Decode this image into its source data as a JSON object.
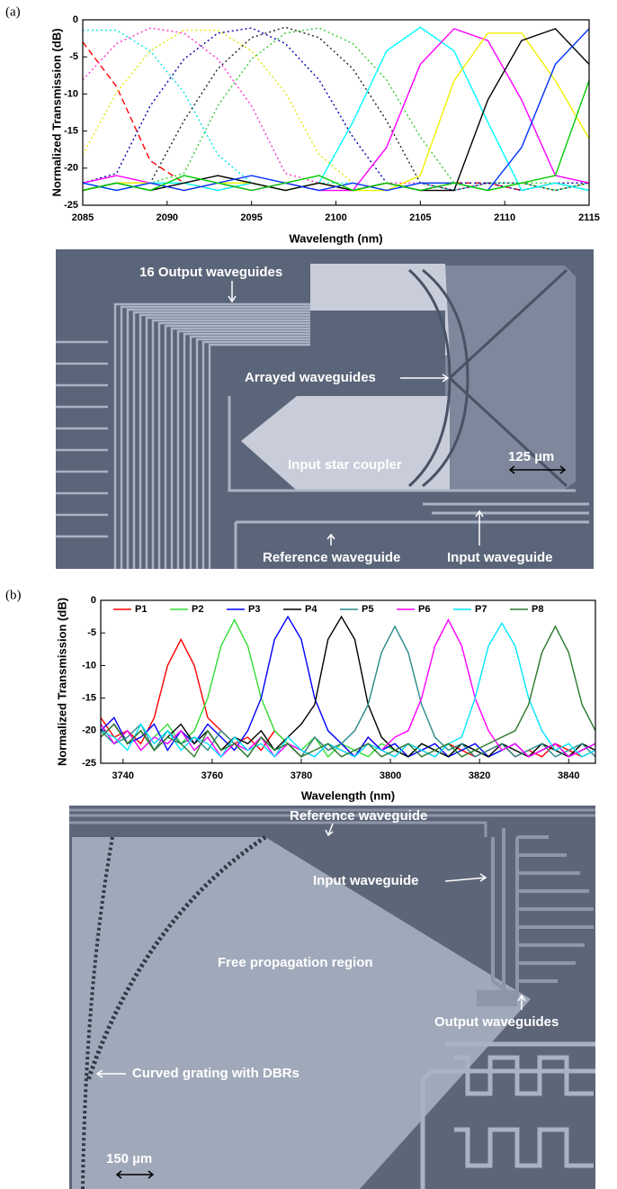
{
  "panel_labels": [
    "(a)",
    "(b)"
  ],
  "chart_data": [
    {
      "type": "line",
      "x_label": "Wavelength (nm)",
      "y_label": "Normalized Transmission (dB)",
      "xlim": [
        2085,
        2115
      ],
      "ylim": [
        -25,
        0
      ],
      "xticks": [
        2085,
        2090,
        2095,
        2100,
        2105,
        2110,
        2115
      ],
      "yticks": [
        0,
        -5,
        -10,
        -15,
        -20,
        -25
      ],
      "x": [
        2085,
        2087,
        2089,
        2091,
        2093,
        2095,
        2097,
        2099,
        2101,
        2103,
        2105,
        2107,
        2109,
        2111,
        2113,
        2115
      ],
      "series": [
        {
          "color": "#ff0000",
          "line_style": "dashed",
          "values": [
            -3,
            -9,
            -19,
            -22,
            -23,
            -22,
            -23,
            -22,
            -23,
            -22,
            -23,
            -22,
            -22,
            -23,
            -22,
            -23
          ]
        },
        {
          "color": "#00e5e5",
          "line_style": "dotted",
          "values": [
            -1.4,
            -1.4,
            -4.2,
            -9.8,
            -18.2,
            -22,
            -23,
            -22,
            -22,
            -23,
            -22,
            -23,
            -22,
            -22,
            -23,
            -22
          ]
        },
        {
          "color": "#ff33cc",
          "line_style": "dotted",
          "values": [
            -8.1,
            -3.2,
            -1.1,
            -1.8,
            -5.3,
            -11.6,
            -20.7,
            -22,
            -23,
            -22,
            -22,
            -23,
            -22,
            -23,
            -22,
            -22
          ]
        },
        {
          "color": "#e5e500",
          "line_style": "dotted",
          "values": [
            -18.2,
            -9.8,
            -4.2,
            -1.4,
            -1.4,
            -4.2,
            -9.8,
            -18.2,
            -22,
            -23,
            -22,
            -22,
            -23,
            -22,
            -23,
            -22
          ]
        },
        {
          "color": "#0000aa",
          "line_style": "dotted",
          "values": [
            -22,
            -20.7,
            -11.6,
            -5.3,
            -1.8,
            -1.1,
            -3.2,
            -8.1,
            -15.8,
            -22,
            -23,
            -22,
            -22,
            -23,
            -22,
            -22
          ]
        },
        {
          "color": "#222222",
          "line_style": "dotted",
          "values": [
            -23,
            -22,
            -22,
            -13.6,
            -6.6,
            -2.4,
            -1,
            -2.4,
            -6.6,
            -13.6,
            -22,
            -23,
            -22,
            -22,
            -23,
            -22
          ]
        },
        {
          "color": "#33cc33",
          "line_style": "dotted",
          "values": [
            -22,
            -23,
            -22,
            -20.7,
            -11.6,
            -5.3,
            -1.8,
            -1.1,
            -3.2,
            -8.1,
            -15.8,
            -22,
            -23,
            -22,
            -22,
            -23
          ]
        },
        {
          "color": "#00ffff",
          "line_style": "solid",
          "values": [
            -22,
            -23,
            -22,
            -22,
            -23,
            -22,
            -23,
            -22,
            -13.8,
            -4.2,
            -1,
            -4.2,
            -13.8,
            -23,
            -22,
            -23
          ]
        },
        {
          "color": "#ff00ff",
          "line_style": "solid",
          "values": [
            -22,
            -21,
            -22,
            -23,
            -22,
            -23,
            -22,
            -23,
            -23,
            -17.2,
            -6,
            -1.2,
            -2.8,
            -10.8,
            -21,
            -22
          ]
        },
        {
          "color": "#f0f000",
          "line_style": "solid",
          "values": [
            -23,
            -22,
            -22,
            -23,
            -22,
            -22,
            -23,
            -22,
            -23,
            -23,
            -21,
            -8.2,
            -1.8,
            -1.8,
            -8.2,
            -16
          ]
        },
        {
          "color": "#000000",
          "line_style": "solid",
          "values": [
            -23,
            -22,
            -23,
            -22,
            -21,
            -22,
            -23,
            -22,
            -23,
            -22,
            -23,
            -23,
            -10.8,
            -2.8,
            -1.2,
            -6
          ]
        },
        {
          "color": "#0033ff",
          "line_style": "solid",
          "values": [
            -22,
            -23,
            -22,
            -23,
            -22,
            -21,
            -22,
            -23,
            -22,
            -23,
            -22,
            -22,
            -23,
            -17.2,
            -6,
            -1.2
          ]
        },
        {
          "color": "#00cc00",
          "line_style": "solid",
          "values": [
            -23,
            -22,
            -23,
            -21,
            -22,
            -23,
            -22,
            -21,
            -23,
            -22,
            -23,
            -22,
            -23,
            -22,
            -21,
            -8.2
          ]
        }
      ]
    },
    {
      "type": "line",
      "x_label": "Wavelength (nm)",
      "y_label": "Normalized Transmission (dB)",
      "xlim": [
        3735,
        3846
      ],
      "ylim": [
        -25,
        0
      ],
      "xticks": [
        3740,
        3760,
        3780,
        3800,
        3820,
        3840
      ],
      "yticks": [
        0,
        -5,
        -10,
        -15,
        -20,
        -25
      ],
      "legend": "top",
      "x": [
        3735,
        3738,
        3741,
        3744,
        3747,
        3750,
        3753,
        3756,
        3759,
        3762,
        3765,
        3768,
        3771,
        3774,
        3777,
        3780,
        3783,
        3786,
        3789,
        3792,
        3795,
        3798,
        3801,
        3804,
        3807,
        3810,
        3813,
        3816,
        3819,
        3822,
        3825,
        3828,
        3831,
        3834,
        3837,
        3840,
        3843,
        3846,
        3849
      ],
      "series": [
        {
          "name": "P1",
          "color": "#ff0000",
          "values": [
            -18,
            -21,
            -20,
            -22,
            -18,
            -10,
            -6,
            -10,
            -18,
            -20,
            -22,
            -21,
            -23,
            -20,
            -22,
            -24,
            -21,
            -23,
            -22,
            -24,
            -21,
            -23,
            -24,
            -22,
            -23,
            -24,
            -22,
            -23,
            -24,
            -23,
            -22,
            -24,
            -23,
            -24,
            -22,
            -23,
            -24,
            -23,
            -22
          ]
        },
        {
          "name": "P2",
          "color": "#33dd33",
          "values": [
            -19,
            -22,
            -20,
            -23,
            -21,
            -19,
            -22,
            -20,
            -15,
            -7,
            -3,
            -7,
            -15,
            -20,
            -22,
            -23,
            -21,
            -24,
            -22,
            -23,
            -24,
            -22,
            -23,
            -24,
            -22,
            -23,
            -24,
            -22,
            -23,
            -24,
            -23,
            -22,
            -24,
            -23,
            -22,
            -24,
            -23,
            -22,
            -24
          ]
        },
        {
          "name": "P3",
          "color": "#0000ff",
          "values": [
            -20,
            -18,
            -22,
            -21,
            -19,
            -23,
            -20,
            -22,
            -19,
            -21,
            -23,
            -20,
            -15,
            -6,
            -2.5,
            -6,
            -15,
            -20,
            -22,
            -24,
            -21,
            -23,
            -22,
            -24,
            -23,
            -22,
            -24,
            -23,
            -22,
            -24,
            -23,
            -22,
            -24,
            -23,
            -22,
            -24,
            -23,
            -22,
            -24
          ]
        },
        {
          "name": "P4",
          "color": "#000000",
          "values": [
            -21,
            -19,
            -22,
            -20,
            -23,
            -21,
            -19,
            -22,
            -20,
            -23,
            -21,
            -22,
            -20,
            -23,
            -21,
            -19,
            -16,
            -6,
            -2.5,
            -6,
            -16,
            -21,
            -23,
            -24,
            -22,
            -23,
            -24,
            -22,
            -23,
            -24,
            -22,
            -23,
            -24,
            -22,
            -23,
            -24,
            -22,
            -23,
            -24
          ]
        },
        {
          "name": "P5",
          "color": "#2a8a8a",
          "values": [
            -20,
            -22,
            -21,
            -19,
            -23,
            -20,
            -22,
            -21,
            -23,
            -20,
            -22,
            -24,
            -21,
            -23,
            -22,
            -24,
            -21,
            -23,
            -22,
            -20,
            -16,
            -8,
            -4,
            -8,
            -16,
            -21,
            -23,
            -22,
            -24,
            -23,
            -22,
            -24,
            -23,
            -22,
            -24,
            -23,
            -22,
            -24,
            -23
          ]
        },
        {
          "name": "P6",
          "color": "#ff00ff",
          "values": [
            -19,
            -22,
            -20,
            -23,
            -21,
            -22,
            -20,
            -23,
            -21,
            -24,
            -22,
            -23,
            -21,
            -24,
            -22,
            -23,
            -24,
            -22,
            -23,
            -24,
            -22,
            -23,
            -21,
            -20,
            -15,
            -7,
            -3,
            -7,
            -15,
            -20,
            -23,
            -22,
            -24,
            -23,
            -22,
            -24,
            -23,
            -22,
            -24
          ]
        },
        {
          "name": "P7",
          "color": "#00e5ff",
          "values": [
            -20,
            -21,
            -23,
            -19,
            -22,
            -20,
            -23,
            -21,
            -22,
            -24,
            -21,
            -23,
            -22,
            -24,
            -21,
            -23,
            -24,
            -22,
            -23,
            -24,
            -22,
            -23,
            -24,
            -22,
            -23,
            -24,
            -22,
            -21,
            -15,
            -7,
            -3.5,
            -7,
            -15,
            -20,
            -23,
            -22,
            -24,
            -23,
            -22
          ]
        },
        {
          "name": "P8",
          "color": "#2a7a2a",
          "values": [
            -21,
            -19,
            -22,
            -20,
            -23,
            -21,
            -22,
            -24,
            -20,
            -23,
            -22,
            -24,
            -21,
            -23,
            -22,
            -24,
            -23,
            -22,
            -24,
            -23,
            -22,
            -24,
            -23,
            -22,
            -24,
            -23,
            -22,
            -24,
            -23,
            -22,
            -21,
            -20,
            -16,
            -8,
            -4,
            -8,
            -16,
            -20,
            -21
          ]
        }
      ]
    }
  ],
  "micrographs": [
    {
      "labels": [
        "16 Output waveguides",
        "Arrayed waveguides",
        "Input star coupler",
        "Reference waveguide",
        "Input waveguide"
      ],
      "scale_bar": "125 µm"
    },
    {
      "labels": [
        "Reference waveguide",
        "Input waveguide",
        "Free propagation region",
        "Output waveguides",
        "Curved grating with DBRs"
      ],
      "scale_bar": "150 µm"
    }
  ]
}
